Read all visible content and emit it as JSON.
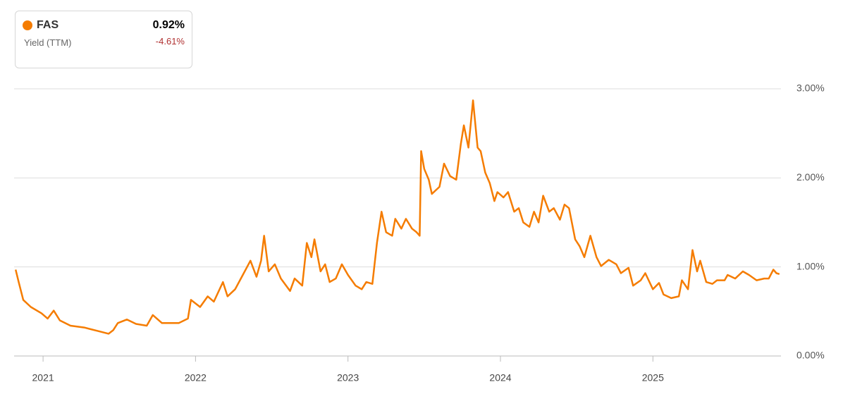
{
  "chart_data": {
    "type": "line",
    "legend": {
      "value": "0.92%",
      "metric": "Yield (TTM)",
      "change": "-4.61%"
    },
    "series": [
      {
        "name": "FAS",
        "color": "#f57c00",
        "x": [
          2020.82,
          2020.84,
          2020.87,
          2020.92,
          2020.99,
          2021.03,
          2021.07,
          2021.11,
          2021.18,
          2021.27,
          2021.36,
          2021.43,
          2021.46,
          2021.49,
          2021.55,
          2021.61,
          2021.68,
          2021.72,
          2021.78,
          2021.89,
          2021.95,
          2021.97,
          2022.03,
          2022.08,
          2022.12,
          2022.18,
          2022.21,
          2022.26,
          2022.31,
          2022.36,
          2022.4,
          2022.43,
          2022.45,
          2022.48,
          2022.52,
          2022.56,
          2022.62,
          2022.65,
          2022.7,
          2022.73,
          2022.76,
          2022.78,
          2022.82,
          2022.85,
          2022.88,
          2022.92,
          2022.96,
          2023.0,
          2023.05,
          2023.09,
          2023.12,
          2023.16,
          2023.19,
          2023.22,
          2023.25,
          2023.29,
          2023.31,
          2023.35,
          2023.38,
          2023.42,
          2023.45,
          2023.47,
          2023.48,
          2023.5,
          2023.53,
          2023.55,
          2023.6,
          2023.63,
          2023.67,
          2023.71,
          2023.74,
          2023.76,
          2023.79,
          2023.82,
          2023.85,
          2023.87,
          2023.9,
          2023.93,
          2023.96,
          2023.98,
          2024.02,
          2024.05,
          2024.09,
          2024.12,
          2024.15,
          2024.19,
          2024.22,
          2024.25,
          2024.28,
          2024.32,
          2024.35,
          2024.39,
          2024.42,
          2024.45,
          2024.49,
          2024.52,
          2024.55,
          2024.59,
          2024.63,
          2024.66,
          2024.71,
          2024.76,
          2024.79,
          2024.84,
          2024.87,
          2024.92,
          2024.95,
          2025.0,
          2025.04,
          2025.07,
          2025.12,
          2025.17,
          2025.19,
          2025.23,
          2025.26,
          2025.29,
          2025.31,
          2025.35,
          2025.39,
          2025.42,
          2025.47,
          2025.49,
          2025.54,
          2025.59,
          2025.63,
          2025.68,
          2025.73,
          2025.76,
          2025.79,
          2025.81,
          2025.83
        ],
        "values": [
          0.97,
          0.83,
          0.63,
          0.55,
          0.48,
          0.42,
          0.51,
          0.4,
          0.34,
          0.32,
          0.28,
          0.25,
          0.29,
          0.37,
          0.41,
          0.36,
          0.34,
          0.46,
          0.37,
          0.37,
          0.42,
          0.63,
          0.55,
          0.67,
          0.61,
          0.83,
          0.67,
          0.75,
          0.91,
          1.07,
          0.89,
          1.07,
          1.35,
          0.95,
          1.03,
          0.87,
          0.73,
          0.87,
          0.79,
          1.27,
          1.11,
          1.31,
          0.95,
          1.03,
          0.83,
          0.87,
          1.03,
          0.91,
          0.79,
          0.75,
          0.83,
          0.81,
          1.27,
          1.62,
          1.39,
          1.35,
          1.54,
          1.43,
          1.54,
          1.43,
          1.39,
          1.35,
          2.3,
          2.1,
          1.98,
          1.82,
          1.9,
          2.16,
          2.02,
          1.98,
          2.38,
          2.59,
          2.34,
          2.87,
          2.34,
          2.3,
          2.06,
          1.94,
          1.74,
          1.84,
          1.78,
          1.84,
          1.62,
          1.66,
          1.5,
          1.45,
          1.62,
          1.5,
          1.8,
          1.62,
          1.66,
          1.53,
          1.7,
          1.66,
          1.31,
          1.23,
          1.11,
          1.35,
          1.11,
          1.01,
          1.08,
          1.03,
          0.93,
          0.99,
          0.79,
          0.85,
          0.93,
          0.75,
          0.82,
          0.69,
          0.65,
          0.67,
          0.85,
          0.75,
          1.19,
          0.95,
          1.07,
          0.83,
          0.81,
          0.85,
          0.85,
          0.91,
          0.87,
          0.95,
          0.91,
          0.85,
          0.87,
          0.87,
          0.97,
          0.93,
          0.92
        ]
      }
    ],
    "xlim": [
      2020.81,
      2025.84
    ],
    "xticks": [
      2021,
      2022,
      2023,
      2024,
      2025
    ],
    "ylim": [
      0,
      3
    ],
    "yticks": [
      {
        "value": 0,
        "label": "0.00%"
      },
      {
        "value": 1,
        "label": "1.00%"
      },
      {
        "value": 2,
        "label": "2.00%"
      },
      {
        "value": 3,
        "label": "3.00%"
      }
    ],
    "grid": true
  }
}
